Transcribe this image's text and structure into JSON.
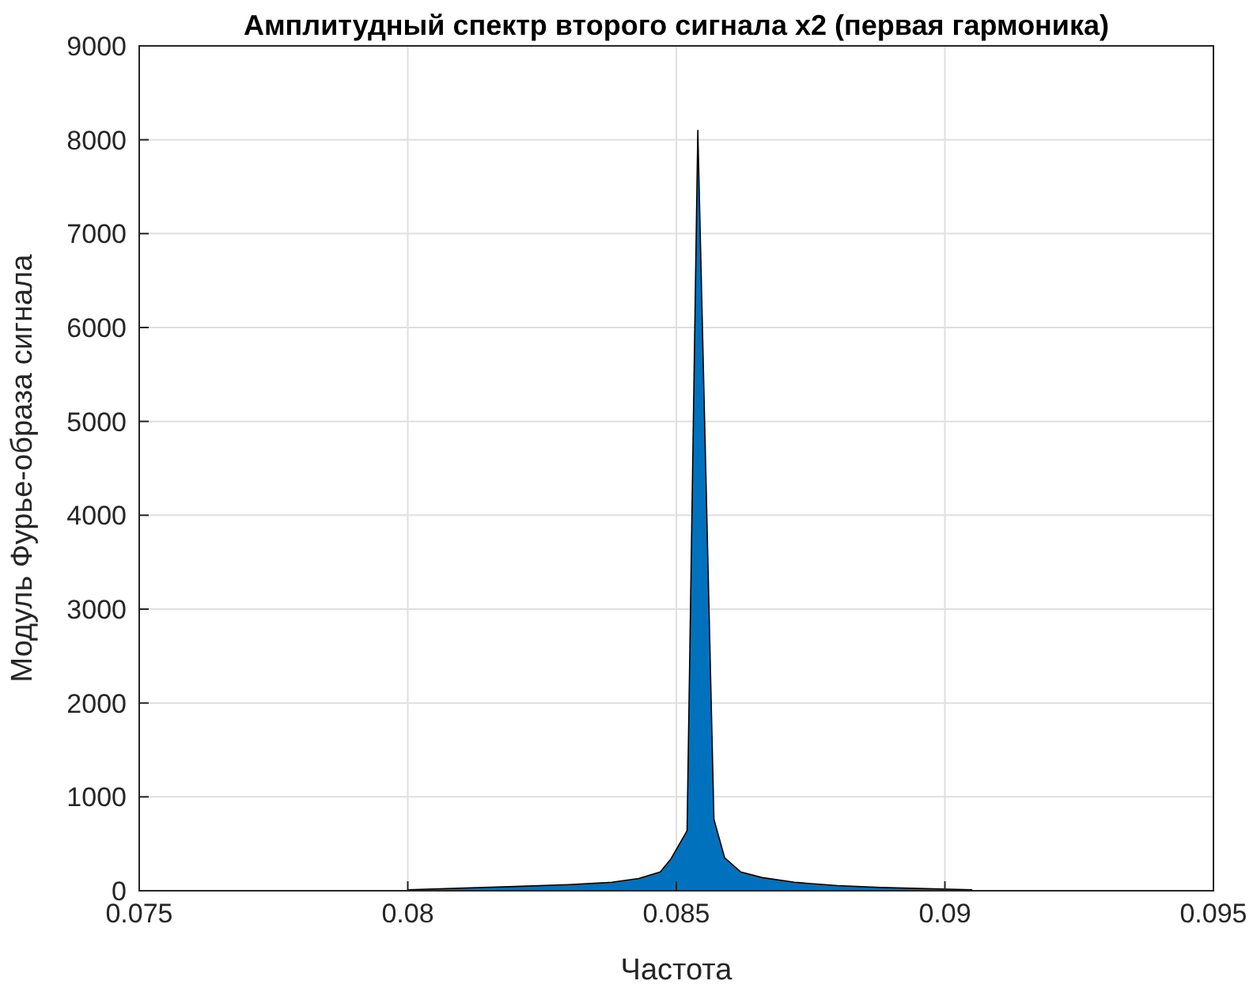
{
  "chart_data": {
    "type": "area",
    "title": "Амплитудный спектр второго сигнала x2 (первая гармоника)",
    "xlabel": "Частота",
    "ylabel": "Модуль Фурье-образа сигнала",
    "x": [
      0.08,
      0.082,
      0.083,
      0.0838,
      0.0843,
      0.0847,
      0.0849,
      0.0852,
      0.0854,
      0.0857,
      0.0859,
      0.0862,
      0.0866,
      0.0872,
      0.088,
      0.0888,
      0.0905
    ],
    "series": [
      {
        "color": "#0072bd",
        "values": [
          10,
          45,
          65,
          90,
          130,
          200,
          340,
          640,
          8100,
          760,
          350,
          200,
          140,
          90,
          55,
          35,
          10
        ]
      }
    ],
    "xlim": [
      0.075,
      0.095
    ],
    "xticks": [
      0.075,
      0.08,
      0.085,
      0.09,
      0.095
    ],
    "ylim": [
      0,
      9000
    ],
    "yticks": [
      0,
      1000,
      2000,
      3000,
      4000,
      5000,
      6000,
      7000,
      8000,
      9000
    ],
    "grid": true
  }
}
